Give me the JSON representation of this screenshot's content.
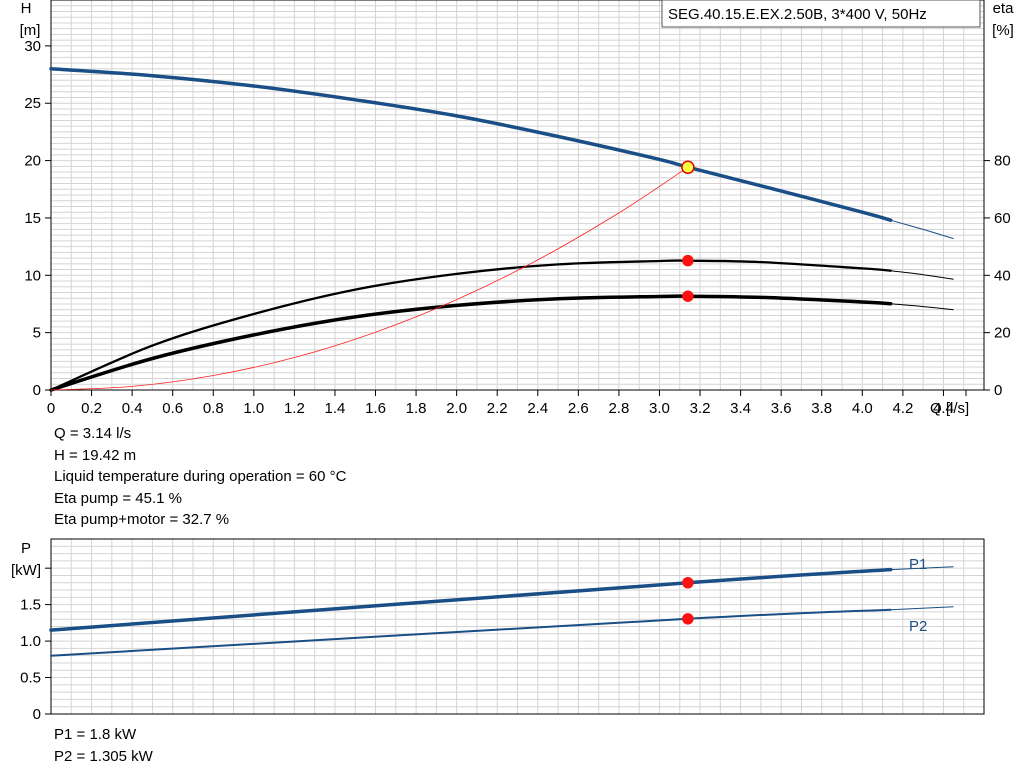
{
  "title_box": {
    "text": "SEG.40.15.E.EX.2.50B, 3*400 V, 50Hz"
  },
  "info_top": [
    "Q = 3.14 l/s",
    "H = 19.42 m",
    "Liquid temperature during operation = 60 °C",
    "Eta pump = 45.1 %",
    "Eta pump+motor = 32.7 %"
  ],
  "info_bottom": [
    "P1 = 1.8 kW",
    "P2 = 1.305 kW"
  ],
  "chart_data": [
    {
      "type": "line",
      "title": "SEG.40.15.E.EX.2.50B, 3*400 V, 50Hz",
      "xlabel": "Q [l/s]",
      "ylabel": "H [m]",
      "y2label": "eta [%]",
      "ylabel_parts": [
        "H",
        "[m]"
      ],
      "y2label_parts": [
        "eta",
        "[%]"
      ],
      "xlim": [
        0,
        4.6
      ],
      "ylim": [
        0,
        34
      ],
      "y2lim": [
        0,
        136
      ],
      "x_ticks": [
        0,
        0.2,
        0.4,
        0.6,
        0.8,
        1.0,
        1.2,
        1.4,
        1.6,
        1.8,
        2.0,
        2.2,
        2.4,
        2.6,
        2.8,
        3.0,
        3.2,
        3.4,
        3.6,
        3.8,
        4.0,
        4.2,
        4.4
      ],
      "x_tick_labels": [
        "0",
        "0.2",
        "0.4",
        "0.6",
        "0.8",
        "1.0",
        "1.2",
        "1.4",
        "1.6",
        "1.8",
        "2.0",
        "2.2",
        "2.4",
        "2.6",
        "2.8",
        "3.0",
        "3.2",
        "3.4",
        "3.6",
        "3.8",
        "4.0",
        "4.2",
        "4.4"
      ],
      "y_ticks": [
        0,
        5,
        10,
        15,
        20,
        25,
        30
      ],
      "y2_ticks": [
        0,
        20,
        40,
        60,
        80
      ],
      "grid": true,
      "series": [
        {
          "key": "H",
          "color": "#1a4e86",
          "width": 3.5,
          "axis": "left",
          "x": [
            0,
            0.5,
            1.0,
            1.5,
            2.0,
            2.5,
            3.0,
            3.14,
            3.5,
            4.0,
            4.14
          ],
          "y": [
            28.0,
            27.4,
            26.5,
            25.3,
            23.9,
            22.1,
            20.1,
            19.42,
            17.8,
            15.5,
            14.8
          ],
          "ext_x": [
            4.14,
            4.3,
            4.45
          ],
          "ext_y": [
            14.8,
            14.0,
            13.2
          ]
        },
        {
          "key": "eta_pump",
          "color": "#000000",
          "width": 2.3,
          "axis": "right",
          "x": [
            0,
            0.5,
            1.0,
            1.5,
            2.0,
            2.5,
            3.0,
            3.14,
            3.5,
            4.0,
            4.14
          ],
          "y": [
            0,
            15.5,
            26.5,
            35.0,
            40.5,
            43.8,
            45.0,
            45.1,
            44.6,
            42.4,
            41.6
          ],
          "ext_x": [
            4.14,
            4.3,
            4.45
          ],
          "ext_y": [
            41.6,
            40.2,
            38.6
          ]
        },
        {
          "key": "eta_pump_motor",
          "color": "#000000",
          "width": 3.5,
          "axis": "right",
          "x": [
            0,
            0.5,
            1.0,
            1.5,
            2.0,
            2.5,
            3.0,
            3.14,
            3.5,
            4.0,
            4.14
          ],
          "y": [
            0,
            11.0,
            19.2,
            25.5,
            29.5,
            31.8,
            32.6,
            32.7,
            32.3,
            30.7,
            30.1
          ],
          "ext_x": [
            4.14,
            4.3,
            4.45
          ],
          "ext_y": [
            30.1,
            29.1,
            28.0
          ]
        },
        {
          "key": "system",
          "color": "#ff2020",
          "width": 0.8,
          "axis": "left",
          "x": [
            0,
            0.4,
            0.8,
            1.2,
            1.6,
            2.0,
            2.4,
            2.8,
            3.14
          ],
          "y": [
            0,
            0.31,
            1.26,
            2.83,
            5.04,
            7.88,
            11.34,
            15.44,
            19.42
          ]
        }
      ],
      "markers": [
        {
          "x": 3.14,
          "y": 19.42,
          "axis": "left",
          "fill": "#ffff44",
          "stroke": "#e00000",
          "r": 6
        },
        {
          "x": 3.14,
          "y": 45.1,
          "axis": "right",
          "fill": "#ff1010",
          "stroke": "#ff1010",
          "r": 5
        },
        {
          "x": 3.14,
          "y": 32.7,
          "axis": "right",
          "fill": "#ff1010",
          "stroke": "#ff1010",
          "r": 5
        }
      ]
    },
    {
      "type": "line",
      "ylabel": "P [kW]",
      "ylabel_parts": [
        "P",
        "[kW]"
      ],
      "xlim": [
        0,
        4.6
      ],
      "ylim": [
        0,
        2.4
      ],
      "y_ticks": [
        0,
        0.5,
        1.0,
        1.5
      ],
      "y_tick_labels": [
        "0",
        "0.5",
        "1.0",
        "1.5"
      ],
      "grid": true,
      "series": [
        {
          "name": "P1",
          "color": "#1a4e86",
          "width": 3.5,
          "x": [
            0,
            3.14,
            4.14
          ],
          "y": [
            1.15,
            1.8,
            1.98
          ],
          "ext_x": [
            4.14,
            4.45
          ],
          "ext_y": [
            1.98,
            2.02
          ]
        },
        {
          "name": "P2",
          "color": "#1a4e86",
          "width": 2.0,
          "x": [
            0,
            3.14,
            4.14
          ],
          "y": [
            0.8,
            1.305,
            1.43
          ],
          "ext_x": [
            4.14,
            4.45
          ],
          "ext_y": [
            1.43,
            1.47
          ]
        }
      ],
      "markers": [
        {
          "x": 3.14,
          "y": 1.8,
          "fill": "#ff1010",
          "stroke": "#ff1010",
          "r": 5
        },
        {
          "x": 3.14,
          "y": 1.305,
          "fill": "#ff1010",
          "stroke": "#ff1010",
          "r": 5
        }
      ]
    }
  ]
}
